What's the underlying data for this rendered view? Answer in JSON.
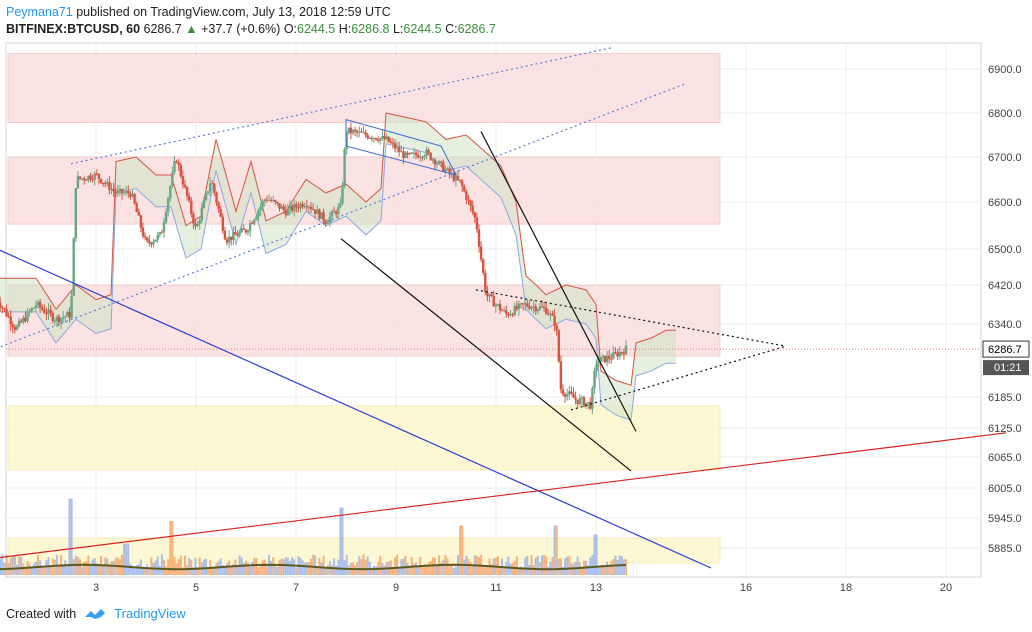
{
  "header": {
    "author": "Peymana71",
    "published": "published on TradingView.com, July 13, 2018 12:59 UTC",
    "symbol": "BITFINEX:BTCUSD, 60",
    "last": "6286.7",
    "change_arrow": "▲",
    "change": "+37.7 (+0.6%)",
    "o_label": "O:",
    "o": "6244.5",
    "h_label": "H:",
    "h": "6286.8",
    "l_label": "L:",
    "l": "6244.5",
    "c_label": "C:",
    "c": "6286.7"
  },
  "footer": {
    "created": "Created with",
    "brand": "TradingView",
    "logo_icon": "tradingview-logo-icon"
  },
  "colors": {
    "bull": "#6ba583",
    "bear": "#d75442",
    "pink_zone": "#f9d9d9",
    "yellow_zone": "#fbf5c4",
    "kumo_red": "#f5b6b0",
    "kumo_green": "#cfe3c9",
    "price_label": "#ffffff"
  },
  "chart_data": {
    "type": "candlestick",
    "y_axis": {
      "ticks": [
        "6900.0",
        "6800.0",
        "6700.0",
        "6600.0",
        "6500.0",
        "6420.0",
        "6340.0",
        "6286.7",
        "6185.0",
        "6125.0",
        "6065.0",
        "6005.0",
        "5945.0",
        "5885.0"
      ],
      "current_price": "6286.7",
      "countdown": "01:21"
    },
    "x_axis": {
      "ticks": [
        "3",
        "5",
        "7",
        "9",
        "11",
        "13",
        "16",
        "18",
        "20"
      ]
    },
    "price_path": [
      {
        "day": 1.0,
        "price": 6395
      },
      {
        "day": 1.4,
        "price": 6330
      },
      {
        "day": 1.8,
        "price": 6380
      },
      {
        "day": 2.2,
        "price": 6350
      },
      {
        "day": 2.5,
        "price": 6360
      },
      {
        "day": 2.6,
        "price": 6650
      },
      {
        "day": 3.0,
        "price": 6660
      },
      {
        "day": 3.4,
        "price": 6620
      },
      {
        "day": 3.7,
        "price": 6620
      },
      {
        "day": 4.0,
        "price": 6510
      },
      {
        "day": 4.3,
        "price": 6530
      },
      {
        "day": 4.6,
        "price": 6700
      },
      {
        "day": 5.0,
        "price": 6540
      },
      {
        "day": 5.3,
        "price": 6650
      },
      {
        "day": 5.6,
        "price": 6520
      },
      {
        "day": 6.0,
        "price": 6540
      },
      {
        "day": 6.4,
        "price": 6610
      },
      {
        "day": 6.8,
        "price": 6580
      },
      {
        "day": 7.2,
        "price": 6600
      },
      {
        "day": 7.6,
        "price": 6560
      },
      {
        "day": 7.9,
        "price": 6590
      },
      {
        "day": 8.0,
        "price": 6760
      },
      {
        "day": 8.4,
        "price": 6750
      },
      {
        "day": 8.8,
        "price": 6740
      },
      {
        "day": 9.2,
        "price": 6700
      },
      {
        "day": 9.6,
        "price": 6710
      },
      {
        "day": 10.0,
        "price": 6670
      },
      {
        "day": 10.3,
        "price": 6640
      },
      {
        "day": 10.6,
        "price": 6560
      },
      {
        "day": 10.8,
        "price": 6400
      },
      {
        "day": 11.2,
        "price": 6360
      },
      {
        "day": 11.6,
        "price": 6380
      },
      {
        "day": 12.0,
        "price": 6370
      },
      {
        "day": 12.2,
        "price": 6340
      },
      {
        "day": 12.3,
        "price": 6200
      },
      {
        "day": 12.6,
        "price": 6180
      },
      {
        "day": 12.9,
        "price": 6170
      },
      {
        "day": 13.0,
        "price": 6260
      },
      {
        "day": 13.3,
        "price": 6270
      },
      {
        "day": 13.6,
        "price": 6286.7
      }
    ],
    "volume_path": [
      {
        "day": 2.5,
        "v": 0.85
      },
      {
        "day": 3.6,
        "v": 0.35
      },
      {
        "day": 4.5,
        "v": 0.6
      },
      {
        "day": 7.9,
        "v": 0.75
      },
      {
        "day": 10.3,
        "v": 0.55
      },
      {
        "day": 12.2,
        "v": 0.55
      },
      {
        "day": 13.0,
        "v": 0.45
      }
    ],
    "zones": [
      {
        "kind": "pink",
        "from_price": 6778,
        "to_price": 6935
      },
      {
        "kind": "pink",
        "from_price": 6553,
        "to_price": 6700
      },
      {
        "kind": "pink",
        "from_price": 6272,
        "to_price": 6420
      },
      {
        "kind": "yellow",
        "from_price": 6040,
        "to_price": 6168
      },
      {
        "kind": "yellow",
        "from_price": 5855,
        "to_price": 5905
      }
    ],
    "trendlines": [
      {
        "style": "dotted",
        "color": "#5b7fd6",
        "points": [
          {
            "day": 2.5,
            "price": 6685
          },
          {
            "day": 13.3,
            "price": 6948
          }
        ]
      },
      {
        "style": "dotted",
        "color": "#5b7fd6",
        "points": [
          {
            "day": 1.0,
            "price": 6288
          },
          {
            "day": 14.8,
            "price": 6867
          }
        ]
      },
      {
        "style": "solid",
        "color": "#2c3cd6",
        "points": [
          {
            "day": 0.6,
            "price": 6520
          },
          {
            "day": 15.3,
            "price": 5845
          }
        ]
      },
      {
        "style": "solid",
        "color": "#d82222",
        "points": [
          {
            "day": 0.6,
            "price": 5860
          },
          {
            "day": 21.2,
            "price": 6115
          }
        ]
      },
      {
        "style": "solid",
        "color": "#111111",
        "points": [
          {
            "day": 7.9,
            "price": 6522
          },
          {
            "day": 13.7,
            "price": 6038
          }
        ]
      },
      {
        "style": "solid",
        "color": "#111111",
        "points": [
          {
            "day": 10.7,
            "price": 6758
          },
          {
            "day": 13.8,
            "price": 6118
          }
        ]
      },
      {
        "style": "dotted",
        "color": "#111111",
        "points": [
          {
            "day": 10.6,
            "price": 6410
          },
          {
            "day": 16.8,
            "price": 6293
          }
        ]
      },
      {
        "style": "dotted",
        "color": "#111111",
        "points": [
          {
            "day": 12.5,
            "price": 6160
          },
          {
            "day": 16.8,
            "price": 6293
          }
        ]
      }
    ]
  }
}
